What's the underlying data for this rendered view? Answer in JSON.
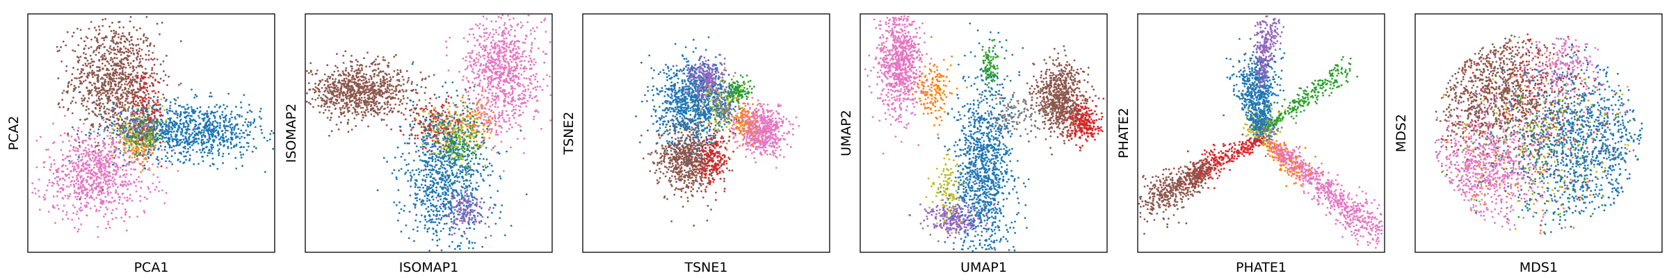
{
  "chart_data": [
    {
      "type": "scatter",
      "xlabel": "PCA1",
      "ylabel": "PCA2",
      "grid": false,
      "ticks": false,
      "xlim": [
        -1,
        1
      ],
      "ylim": [
        -1,
        1
      ],
      "clusters": [
        {
          "color": "#8c564b",
          "cx": -0.3,
          "cy": 0.45,
          "sx": 0.18,
          "sy": 0.24,
          "n": 950
        },
        {
          "color": "#1f77b4",
          "cx": 0.3,
          "cy": 0.02,
          "sx": 0.3,
          "sy": 0.12,
          "n": 950
        },
        {
          "color": "#e377c2",
          "cx": -0.45,
          "cy": -0.35,
          "sx": 0.22,
          "sy": 0.18,
          "n": 800
        },
        {
          "color": "#bcbd22",
          "cx": -0.1,
          "cy": 0.0,
          "sx": 0.1,
          "sy": 0.1,
          "n": 150
        },
        {
          "color": "#d62728",
          "cx": -0.05,
          "cy": 0.2,
          "sx": 0.08,
          "sy": 0.14,
          "n": 150
        },
        {
          "color": "#2ca02c",
          "cx": -0.05,
          "cy": -0.02,
          "sx": 0.07,
          "sy": 0.07,
          "n": 90
        },
        {
          "color": "#ff7f0e",
          "cx": -0.1,
          "cy": -0.12,
          "sx": 0.08,
          "sy": 0.06,
          "n": 80
        },
        {
          "color": "#9467bd",
          "cx": -0.05,
          "cy": 0.05,
          "sx": 0.06,
          "sy": 0.06,
          "n": 70
        },
        {
          "color": "#7f7f7f",
          "cx": -0.08,
          "cy": 0.05,
          "sx": 0.05,
          "sy": 0.06,
          "n": 60
        }
      ]
    },
    {
      "type": "scatter",
      "xlabel": "ISOMAP1",
      "ylabel": "ISOMAP2",
      "grid": false,
      "ticks": false,
      "xlim": [
        -1,
        1
      ],
      "ylim": [
        -1,
        1
      ],
      "clusters": [
        {
          "color": "#8c564b",
          "cx": -0.55,
          "cy": 0.35,
          "sx": 0.22,
          "sy": 0.12,
          "n": 900
        },
        {
          "color": "#e377c2",
          "cx": 0.6,
          "cy": 0.5,
          "sx": 0.15,
          "sy": 0.25,
          "n": 850
        },
        {
          "color": "#1f77b4",
          "cx": 0.15,
          "cy": -0.35,
          "sx": 0.17,
          "sy": 0.3,
          "n": 950
        },
        {
          "color": "#9467bd",
          "cx": 0.3,
          "cy": -0.65,
          "sx": 0.09,
          "sy": 0.08,
          "n": 150
        },
        {
          "color": "#bcbd22",
          "cx": 0.2,
          "cy": 0.0,
          "sx": 0.12,
          "sy": 0.12,
          "n": 180
        },
        {
          "color": "#2ca02c",
          "cx": 0.25,
          "cy": -0.1,
          "sx": 0.08,
          "sy": 0.1,
          "n": 120
        },
        {
          "color": "#d62728",
          "cx": 0.05,
          "cy": 0.1,
          "sx": 0.12,
          "sy": 0.1,
          "n": 120
        },
        {
          "color": "#ff7f0e",
          "cx": 0.35,
          "cy": 0.1,
          "sx": 0.1,
          "sy": 0.1,
          "n": 100
        },
        {
          "color": "#7f7f7f",
          "cx": 0.1,
          "cy": 0.05,
          "sx": 0.1,
          "sy": 0.08,
          "n": 80
        }
      ]
    },
    {
      "type": "scatter",
      "xlabel": "TSNE1",
      "ylabel": "TSNE2",
      "grid": false,
      "ticks": false,
      "xlim": [
        -1,
        1
      ],
      "ylim": [
        -1,
        1
      ],
      "clusters": [
        {
          "color": "#1f77b4",
          "cx": -0.1,
          "cy": 0.25,
          "sx": 0.15,
          "sy": 0.17,
          "n": 950
        },
        {
          "color": "#9467bd",
          "cx": 0.0,
          "cy": 0.45,
          "sx": 0.08,
          "sy": 0.08,
          "n": 280
        },
        {
          "color": "#8c564b",
          "cx": -0.15,
          "cy": -0.22,
          "sx": 0.12,
          "sy": 0.14,
          "n": 650
        },
        {
          "color": "#d62728",
          "cx": 0.05,
          "cy": -0.22,
          "sx": 0.06,
          "sy": 0.1,
          "n": 200
        },
        {
          "color": "#e377c2",
          "cx": 0.45,
          "cy": 0.02,
          "sx": 0.1,
          "sy": 0.1,
          "n": 550
        },
        {
          "color": "#ff7f0e",
          "cx": 0.32,
          "cy": 0.08,
          "sx": 0.06,
          "sy": 0.08,
          "n": 140
        },
        {
          "color": "#2ca02c",
          "cx": 0.25,
          "cy": 0.35,
          "sx": 0.05,
          "sy": 0.05,
          "n": 120
        },
        {
          "color": "#bcbd22",
          "cx": 0.1,
          "cy": 0.25,
          "sx": 0.08,
          "sy": 0.12,
          "n": 130
        },
        {
          "color": "#7f7f7f",
          "cx": 0.15,
          "cy": 0.2,
          "sx": 0.05,
          "sy": 0.05,
          "n": 80
        }
      ]
    },
    {
      "type": "scatter",
      "xlabel": "UMAP1",
      "ylabel": "UMAP2",
      "grid": false,
      "ticks": false,
      "xlim": [
        -1,
        1
      ],
      "ylim": [
        -1,
        1
      ],
      "clusters": [
        {
          "color": "#e377c2",
          "cx": -0.68,
          "cy": 0.6,
          "sx": 0.09,
          "sy": 0.22,
          "n": 800
        },
        {
          "color": "#8c564b",
          "cx": 0.62,
          "cy": 0.3,
          "sx": 0.1,
          "sy": 0.15,
          "n": 700
        },
        {
          "color": "#d62728",
          "cx": 0.8,
          "cy": 0.08,
          "sx": 0.07,
          "sy": 0.08,
          "n": 250
        },
        {
          "color": "#1f77b4",
          "cx": 0.0,
          "cy": -0.3,
          "sx": 0.12,
          "sy": 0.38,
          "n": 1100
        },
        {
          "color": "#9467bd",
          "cx": -0.25,
          "cy": -0.72,
          "sx": 0.12,
          "sy": 0.07,
          "n": 250
        },
        {
          "color": "#2ca02c",
          "cx": 0.05,
          "cy": 0.55,
          "sx": 0.03,
          "sy": 0.1,
          "n": 100
        },
        {
          "color": "#ff7f0e",
          "cx": -0.4,
          "cy": 0.35,
          "sx": 0.08,
          "sy": 0.12,
          "n": 150
        },
        {
          "color": "#bcbd22",
          "cx": -0.3,
          "cy": -0.45,
          "sx": 0.05,
          "sy": 0.15,
          "n": 120
        },
        {
          "color": "#7f7f7f",
          "cx": 0.25,
          "cy": 0.15,
          "sx": 0.15,
          "sy": 0.08,
          "n": 120
        }
      ]
    },
    {
      "type": "scatter",
      "xlabel": "PHATE1",
      "ylabel": "PHATE2",
      "grid": false,
      "ticks": false,
      "xlim": [
        -1,
        1
      ],
      "ylim": [
        -1,
        1
      ],
      "arms": [
        {
          "color": "#1f77b4",
          "x0": 0.0,
          "y0": 0.0,
          "x1": -0.05,
          "y1": 0.55,
          "spread": 0.07,
          "n": 700
        },
        {
          "color": "#9467bd",
          "x0": 0.0,
          "y0": 0.4,
          "x1": 0.05,
          "y1": 0.95,
          "spread": 0.04,
          "n": 300
        },
        {
          "color": "#8c564b",
          "x0": -0.45,
          "y0": -0.3,
          "x1": -0.9,
          "y1": -0.6,
          "spread": 0.07,
          "n": 500
        },
        {
          "color": "#d62728",
          "x0": 0.0,
          "y0": -0.05,
          "x1": -0.55,
          "y1": -0.35,
          "spread": 0.05,
          "n": 300
        },
        {
          "color": "#e377c2",
          "x0": 0.1,
          "y0": -0.1,
          "x1": 0.95,
          "y1": -0.85,
          "spread": 0.06,
          "n": 650
        },
        {
          "color": "#2ca02c",
          "x0": 0.05,
          "y0": 0.05,
          "x1": 0.7,
          "y1": 0.55,
          "spread": 0.04,
          "n": 250
        },
        {
          "color": "#ff7f0e",
          "x0": 0.0,
          "y0": -0.05,
          "x1": 0.35,
          "y1": -0.35,
          "spread": 0.05,
          "n": 150
        },
        {
          "color": "#bcbd22",
          "x0": -0.02,
          "y0": 0.0,
          "x1": 0.02,
          "y1": 0.1,
          "spread": 0.06,
          "n": 100
        },
        {
          "color": "#7f7f7f",
          "x0": 0.0,
          "y0": 0.0,
          "x1": 0.1,
          "y1": 0.05,
          "spread": 0.05,
          "n": 60
        }
      ]
    },
    {
      "type": "scatter",
      "xlabel": "MDS1",
      "ylabel": "MDS2",
      "grid": false,
      "ticks": false,
      "xlim": [
        -1,
        1
      ],
      "ylim": [
        -1,
        1
      ],
      "disk": {
        "cx": 0.0,
        "cy": 0.0,
        "r": 0.85
      },
      "regions": [
        {
          "color": "#8c564b",
          "cx": -0.35,
          "cy": 0.35,
          "sx": 0.28,
          "sy": 0.25,
          "n": 900
        },
        {
          "color": "#1f77b4",
          "cx": 0.35,
          "cy": -0.1,
          "sx": 0.28,
          "sy": 0.35,
          "n": 1000
        },
        {
          "color": "#e377c2",
          "cx": -0.45,
          "cy": -0.3,
          "sx": 0.22,
          "sy": 0.25,
          "n": 700
        },
        {
          "color": "#e377c2",
          "cx": 0.2,
          "cy": 0.55,
          "sx": 0.15,
          "sy": 0.15,
          "n": 200
        },
        {
          "color": "#d62728",
          "cx": 0.0,
          "cy": 0.3,
          "sx": 0.3,
          "sy": 0.3,
          "n": 150
        },
        {
          "color": "#bcbd22",
          "cx": -0.05,
          "cy": 0.0,
          "sx": 0.35,
          "sy": 0.35,
          "n": 150
        },
        {
          "color": "#2ca02c",
          "cx": 0.0,
          "cy": -0.1,
          "sx": 0.35,
          "sy": 0.35,
          "n": 120
        },
        {
          "color": "#ff7f0e",
          "cx": -0.1,
          "cy": -0.2,
          "sx": 0.35,
          "sy": 0.35,
          "n": 120
        },
        {
          "color": "#9467bd",
          "cx": 0.1,
          "cy": 0.1,
          "sx": 0.35,
          "sy": 0.35,
          "n": 120
        },
        {
          "color": "#7f7f7f",
          "cx": 0.0,
          "cy": 0.0,
          "sx": 0.35,
          "sy": 0.35,
          "n": 80
        }
      ]
    }
  ]
}
